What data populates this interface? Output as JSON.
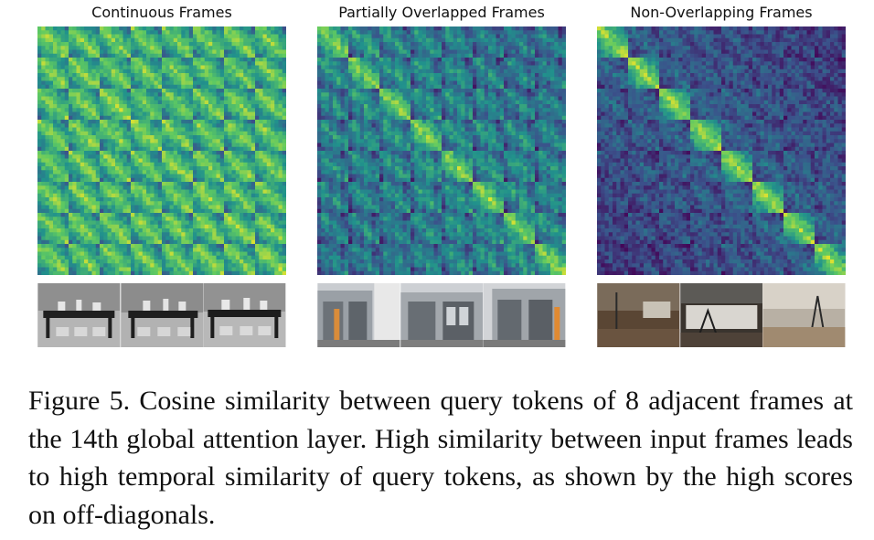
{
  "panels": [
    {
      "title": "Continuous Frames"
    },
    {
      "title": "Partially Overlapped Frames"
    },
    {
      "title": "Non-Overlapping Frames"
    }
  ],
  "caption": "Figure 5. Cosine similarity between query tokens of 8 adjacent frames at the 14th global attention layer. High similarity between input frames leads to high temporal similarity of query tokens, as shown by the high scores on off-diagonals.",
  "chart_data": [
    {
      "type": "heatmap",
      "title": "Continuous Frames",
      "frames": 8,
      "colormap": "viridis",
      "off_diagonal_similarity": "high"
    },
    {
      "type": "heatmap",
      "title": "Partially Overlapped Frames",
      "frames": 8,
      "colormap": "viridis",
      "off_diagonal_similarity": "medium"
    },
    {
      "type": "heatmap",
      "title": "Non-Overlapping Frames",
      "frames": 8,
      "colormap": "viridis",
      "off_diagonal_similarity": "low"
    }
  ]
}
